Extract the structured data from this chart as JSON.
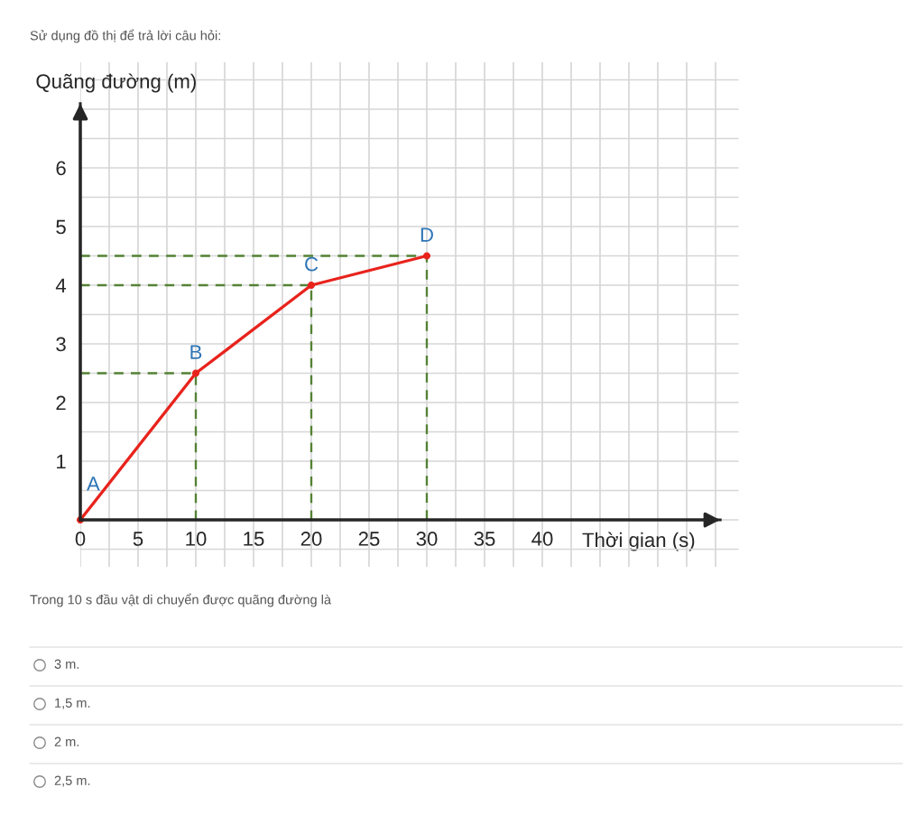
{
  "chart_data": {
    "type": "line",
    "title": "Sử dụng đồ thị để trả lời câu hỏi:",
    "xlabel": "Thời gian (s)",
    "ylabel": "Quãng đường (m)",
    "series": [
      {
        "x": [
          0,
          10,
          20,
          30
        ],
        "values": [
          0,
          2.5,
          4,
          4.5
        ],
        "color": "#e8231c",
        "marker": "circle",
        "line_style": "solid"
      },
      {
        "x": [
          0,
          10,
          10
        ],
        "values": [
          2.5,
          2.5,
          0
        ],
        "color": "#548235",
        "marker": "none",
        "line_style": "dashed"
      },
      {
        "x": [
          0,
          20,
          20
        ],
        "values": [
          4,
          4,
          0
        ],
        "color": "#548235",
        "marker": "none",
        "line_style": "dashed"
      },
      {
        "x": [
          0,
          30,
          30
        ],
        "values": [
          4.5,
          4.5,
          0
        ],
        "color": "#548235",
        "marker": "none",
        "line_style": "dashed"
      }
    ],
    "xlim": [
      0,
      57
    ],
    "ylim": [
      -0.8,
      7.8
    ],
    "xticks": [
      0,
      {
        "value": 2.5,
        "label": null
      },
      5,
      {
        "value": 7.5,
        "label": null
      },
      10,
      {
        "value": 12.5,
        "label": null
      },
      15,
      {
        "value": 17.5,
        "label": null
      },
      20,
      {
        "value": 22.5,
        "label": null
      },
      25,
      {
        "value": 27.5,
        "label": null
      },
      30,
      {
        "value": 32.5,
        "label": null
      },
      35,
      {
        "value": 37.5,
        "label": null
      },
      40,
      {
        "value": 42.5,
        "label": null
      },
      {
        "value": 45,
        "label": null
      },
      {
        "value": 47.5,
        "label": null
      },
      {
        "value": 50,
        "label": null
      },
      {
        "value": 52.5,
        "label": null
      },
      {
        "value": 55,
        "label": null
      }
    ],
    "yticks": [
      {
        "value": -0.5,
        "label": null
      },
      {
        "value": 0,
        "label": null
      },
      {
        "value": 0.5,
        "label": null
      },
      1,
      {
        "value": 1.5,
        "label": null
      },
      2,
      {
        "value": 2.5,
        "label": null
      },
      3,
      {
        "value": 3.5,
        "label": null
      },
      4,
      {
        "value": 4.5,
        "label": null
      },
      5,
      {
        "value": 5.5,
        "label": null
      },
      6,
      {
        "value": 6.5,
        "label": null
      },
      {
        "value": 7,
        "label": null
      },
      {
        "value": 7.5,
        "label": null
      }
    ],
    "grid": true,
    "annotations": [
      {
        "text": "A",
        "x": 0,
        "y": 0
      },
      {
        "text": "B",
        "x": 10,
        "y": 2.5
      },
      {
        "text": "C",
        "x": 20,
        "y": 4
      },
      {
        "text": "D",
        "x": 30,
        "y": 4.5
      },
      "Trong 10 s đầu vật di chuyển được quãng đường là",
      "3 m.",
      "1,5 m.",
      "2 m.",
      "2,5 m."
    ]
  }
}
